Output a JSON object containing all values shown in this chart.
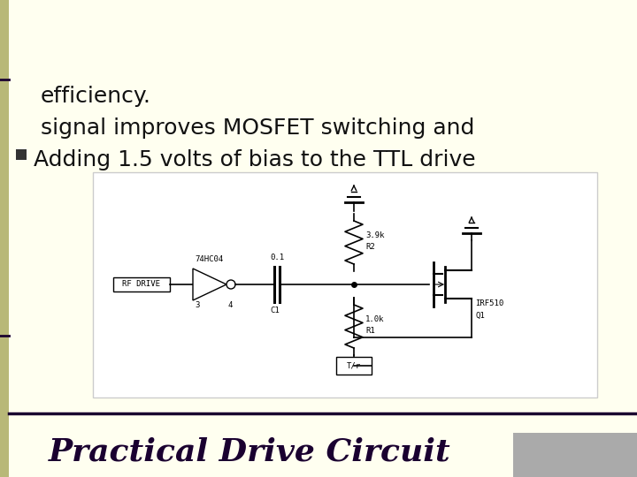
{
  "bg_color": "#fffff0",
  "left_bar_color": "#b8b878",
  "title_text": "Practical Drive Circuit",
  "title_color": "#1a0030",
  "title_fontsize": 26,
  "divider_color": "#1a0030",
  "top_right_bar_color": "#aaaaaa",
  "circuit_line_color": "#000000",
  "bullet_color": "#555555",
  "bullet_text_line1": "Adding 1.5 volts of bias to the TTL drive",
  "bullet_text_line2": "signal improves MOSFET switching and",
  "bullet_text_line3": "efficiency.",
  "bullet_fontsize": 18
}
